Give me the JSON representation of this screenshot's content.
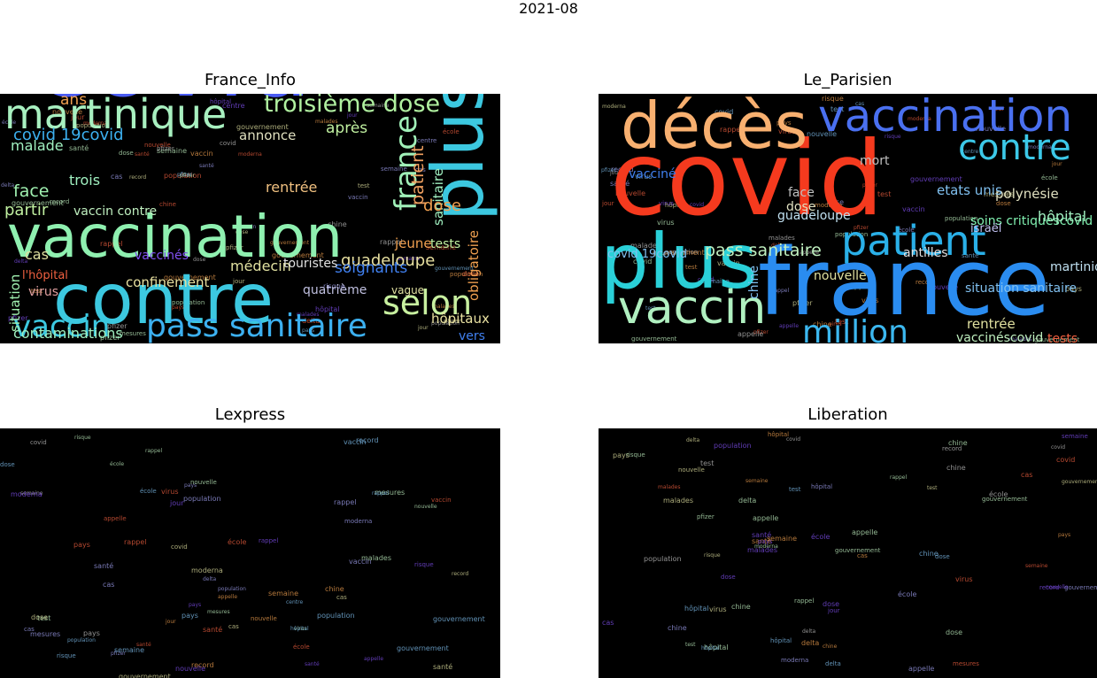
{
  "suptitle": "2021-08",
  "chart_data": [
    {
      "type": "wordcloud",
      "title": "France_Info",
      "words": [
        {
          "text": "covid",
          "color": "#4a5cf2"
        },
        {
          "text": "vaccination",
          "color": "#8ff0b0"
        },
        {
          "text": "contre",
          "color": "#3cc8e0"
        },
        {
          "text": "martinique",
          "color": "#a8f0c0"
        },
        {
          "text": "plus",
          "color": "#3cc8e0"
        },
        {
          "text": "pass sanitaire",
          "color": "#3cb0f0"
        },
        {
          "text": "selon",
          "color": "#c8f0a0"
        },
        {
          "text": "vaccin",
          "color": "#3cc8e0"
        },
        {
          "text": "troisième dose",
          "color": "#b0f0a0"
        },
        {
          "text": "france",
          "color": "#a0f0b8"
        },
        {
          "text": "guadeloupe",
          "color": "#e8e0a0"
        },
        {
          "text": "soignants",
          "color": "#4080f0"
        },
        {
          "text": "patient",
          "color": "#f0a060"
        },
        {
          "text": "sanitaire",
          "color": "#a0f0c0"
        },
        {
          "text": "obligatoire",
          "color": "#f0a050"
        },
        {
          "text": "covid 19covid",
          "color": "#3cb0f0"
        },
        {
          "text": "après",
          "color": "#c0f0a0"
        },
        {
          "text": "hôpitaux",
          "color": "#e8e0a0"
        },
        {
          "text": "contaminations",
          "color": "#a0f0c0"
        },
        {
          "text": "confinement",
          "color": "#e8e0a0"
        },
        {
          "text": "vaccinés",
          "color": "#8050f0"
        },
        {
          "text": "situation",
          "color": "#a0f0b0"
        },
        {
          "text": "face",
          "color": "#a0f0b0"
        },
        {
          "text": "partir",
          "color": "#c0f0a0"
        },
        {
          "text": "dose",
          "color": "#f0a050"
        },
        {
          "text": "jeune",
          "color": "#f0a050"
        },
        {
          "text": "tests",
          "color": "#c0f0a0"
        },
        {
          "text": "médecin",
          "color": "#e0e0a0"
        },
        {
          "text": "touristes",
          "color": "#e0e0e0"
        },
        {
          "text": "quatrième",
          "color": "#c0c0e0"
        },
        {
          "text": "vague",
          "color": "#e0e0a0"
        },
        {
          "text": "ans",
          "color": "#f0a050"
        },
        {
          "text": "trois",
          "color": "#a0f0c0"
        },
        {
          "text": "malade",
          "color": "#a0f0c0"
        },
        {
          "text": "cas",
          "color": "#e0e0a0"
        },
        {
          "text": "vaccin contre",
          "color": "#c0f0c0"
        },
        {
          "text": "rentrée",
          "color": "#f0c080"
        },
        {
          "text": "annonce",
          "color": "#e0e0c0"
        },
        {
          "text": "virus",
          "color": "#e0a0a0"
        },
        {
          "text": "vers",
          "color": "#4080f0"
        },
        {
          "text": "l'hôpital",
          "color": "#f06040"
        }
      ]
    },
    {
      "type": "wordcloud",
      "title": "Le_Parisien",
      "words": [
        {
          "text": "covid",
          "color": "#f53a1e"
        },
        {
          "text": "france",
          "color": "#2a8cf0"
        },
        {
          "text": "plus",
          "color": "#2ad0d8"
        },
        {
          "text": "décès",
          "color": "#f8b070"
        },
        {
          "text": "vaccination",
          "color": "#4a70f0"
        },
        {
          "text": "patient",
          "color": "#2ab0e8"
        },
        {
          "text": "contre",
          "color": "#3cc8e8"
        },
        {
          "text": "vaccin",
          "color": "#b0f0c0"
        },
        {
          "text": "million",
          "color": "#3cb8f0"
        },
        {
          "text": "pass sanitaire",
          "color": "#c0f0c0"
        },
        {
          "text": "soins critiquescovid",
          "color": "#80f0b0"
        },
        {
          "text": "hôpital",
          "color": "#a0f0c0"
        },
        {
          "text": "israël",
          "color": "#c0c0f0"
        },
        {
          "text": "martinique",
          "color": "#c0e0f0"
        },
        {
          "text": "polynésie",
          "color": "#e0e0c0"
        },
        {
          "text": "etats unis",
          "color": "#80c0f0"
        },
        {
          "text": "rentrée",
          "color": "#e0e0a0"
        },
        {
          "text": "situation sanitaire",
          "color": "#80c0f0"
        },
        {
          "text": "vaccinéscovid",
          "color": "#c0f0c0"
        },
        {
          "text": "nouvelle",
          "color": "#e0e0a0"
        },
        {
          "text": "antilles",
          "color": "#e0e0e0"
        },
        {
          "text": "covid 19covid",
          "color": "#80c0f0"
        },
        {
          "text": "dose",
          "color": "#e0e0c0"
        },
        {
          "text": "mort",
          "color": "#c0c0c0"
        },
        {
          "text": "guadeloupe",
          "color": "#c0e0f0"
        },
        {
          "text": "tests",
          "color": "#f06040"
        },
        {
          "text": "vacciné",
          "color": "#4080f0"
        },
        {
          "text": "face",
          "color": "#c0c0c0"
        },
        {
          "text": "chine",
          "color": "#80c0f0"
        },
        {
          "text": "admissions",
          "color": "#e0e0c0"
        }
      ]
    },
    {
      "type": "wordcloud",
      "title": "Lexpress",
      "words": [
        {
          "text": "covid",
          "color": "#2ad0e0"
        },
        {
          "text": "vaccination",
          "color": "#e8e0a0"
        },
        {
          "text": "questions",
          "color": "#6a3cf0"
        },
        {
          "text": "vaccin",
          "color": "#3cb8e0"
        },
        {
          "text": "plus",
          "color": "#3cd0d8"
        },
        {
          "text": "variant",
          "color": "#e8e0a0"
        },
        {
          "text": "face",
          "color": "#c0f0c0"
        },
        {
          "text": "vaccinés",
          "color": "#80e0c0"
        },
        {
          "text": "vague",
          "color": "#f0b070"
        },
        {
          "text": "trois",
          "color": "#80f0b0"
        },
        {
          "text": "israël",
          "color": "#3cb0f0"
        },
        {
          "text": "fin",
          "color": "#80f0b0"
        },
        {
          "text": "situation",
          "color": "#e8e0a0"
        },
        {
          "text": "traitement",
          "color": "#3c90f0"
        },
        {
          "text": "delta",
          "color": "#8050f0"
        },
        {
          "text": "france",
          "color": "#3c90f0"
        },
        {
          "text": "pfizer",
          "color": "#e8e0a0"
        },
        {
          "text": "dernière",
          "color": "#4080f0"
        },
        {
          "text": "quatrième",
          "color": "#2ad0d8"
        },
        {
          "text": "semaines",
          "color": "#e8e0c0"
        },
        {
          "text": "l'effet",
          "color": "#f0c080"
        },
        {
          "text": "données",
          "color": "#f06040"
        },
        {
          "text": "taux",
          "color": "#80c0f0"
        },
        {
          "text": "contre",
          "color": "#3cb0f0"
        },
        {
          "text": "chine",
          "color": "#c0f0c0"
        },
        {
          "text": "dose",
          "color": "#c0f0c0"
        },
        {
          "text": "hôpitaux",
          "color": "#f03030"
        },
        {
          "text": "etats",
          "color": "#e0e0a0"
        },
        {
          "text": "hausse",
          "color": "#3cb0f0"
        },
        {
          "text": "bataille",
          "color": "#e0e0c0"
        },
        {
          "text": "l'on",
          "color": "#3cb0f0"
        },
        {
          "text": "après",
          "color": "#3cb0f0"
        },
        {
          "text": "an",
          "color": "#e0e0c0"
        },
        {
          "text": "demi",
          "color": "#f0a050"
        },
        {
          "text": "cas",
          "color": "#3cb0f0"
        },
        {
          "text": "saison",
          "color": "#c0c0c0"
        }
      ]
    },
    {
      "type": "wordcloud",
      "title": "Liberation",
      "words": [
        {
          "text": "covid",
          "color": "#80f0b0"
        },
        {
          "text": "ã",
          "color": "#80f0b0"
        },
        {
          "text": "point",
          "color": "#7020f0"
        },
        {
          "text": "pandã mie",
          "color": "#e8e0a0"
        },
        {
          "text": "lâ",
          "color": "#3c90f0"
        },
        {
          "text": "dose",
          "color": "#f8c080"
        },
        {
          "text": "dã",
          "color": "#3c90f0"
        },
        {
          "text": "â",
          "color": "#3c90f0"
        },
        {
          "text": "s",
          "color": "#7020f0"
        },
        {
          "text": "e",
          "color": "#4080f0"
        },
        {
          "text": "dã",
          "color": "#e8e0a0"
        },
        {
          "text": "rã",
          "color": "#6030f0"
        },
        {
          "text": "covid 19covid",
          "color": "#f0a050"
        },
        {
          "text": "contre",
          "color": "#c0f0c0"
        },
        {
          "text": "abonnã",
          "color": "#2ad0d8"
        },
        {
          "text": "record",
          "color": "#3cb0f0"
        },
        {
          "text": "morts",
          "color": "#f06040"
        },
        {
          "text": "obligatoire",
          "color": "#2ad0d8"
        },
        {
          "text": "vaccination",
          "color": "#f06040"
        },
        {
          "text": "abonnã scovid",
          "color": "#3c90f0"
        },
        {
          "text": "france",
          "color": "#3c90f0"
        },
        {
          "text": "sanitaire",
          "color": "#c0f0c0"
        },
        {
          "text": "troisiã",
          "color": "#80f0b0"
        },
        {
          "text": "âa tre",
          "color": "#c0c0f0"
        },
        {
          "text": "pass",
          "color": "#e8e0c0"
        },
        {
          "text": "cas",
          "color": "#f0b070"
        },
        {
          "text": "vaccinã",
          "color": "#4080f0"
        },
        {
          "text": "israã",
          "color": "#80f0b0"
        },
        {
          "text": "polynã sie",
          "color": "#80f0b0"
        },
        {
          "text": "hospitalisation",
          "color": "#c0f0c0"
        },
        {
          "text": "libã ration",
          "color": "#f0c080"
        }
      ]
    }
  ]
}
